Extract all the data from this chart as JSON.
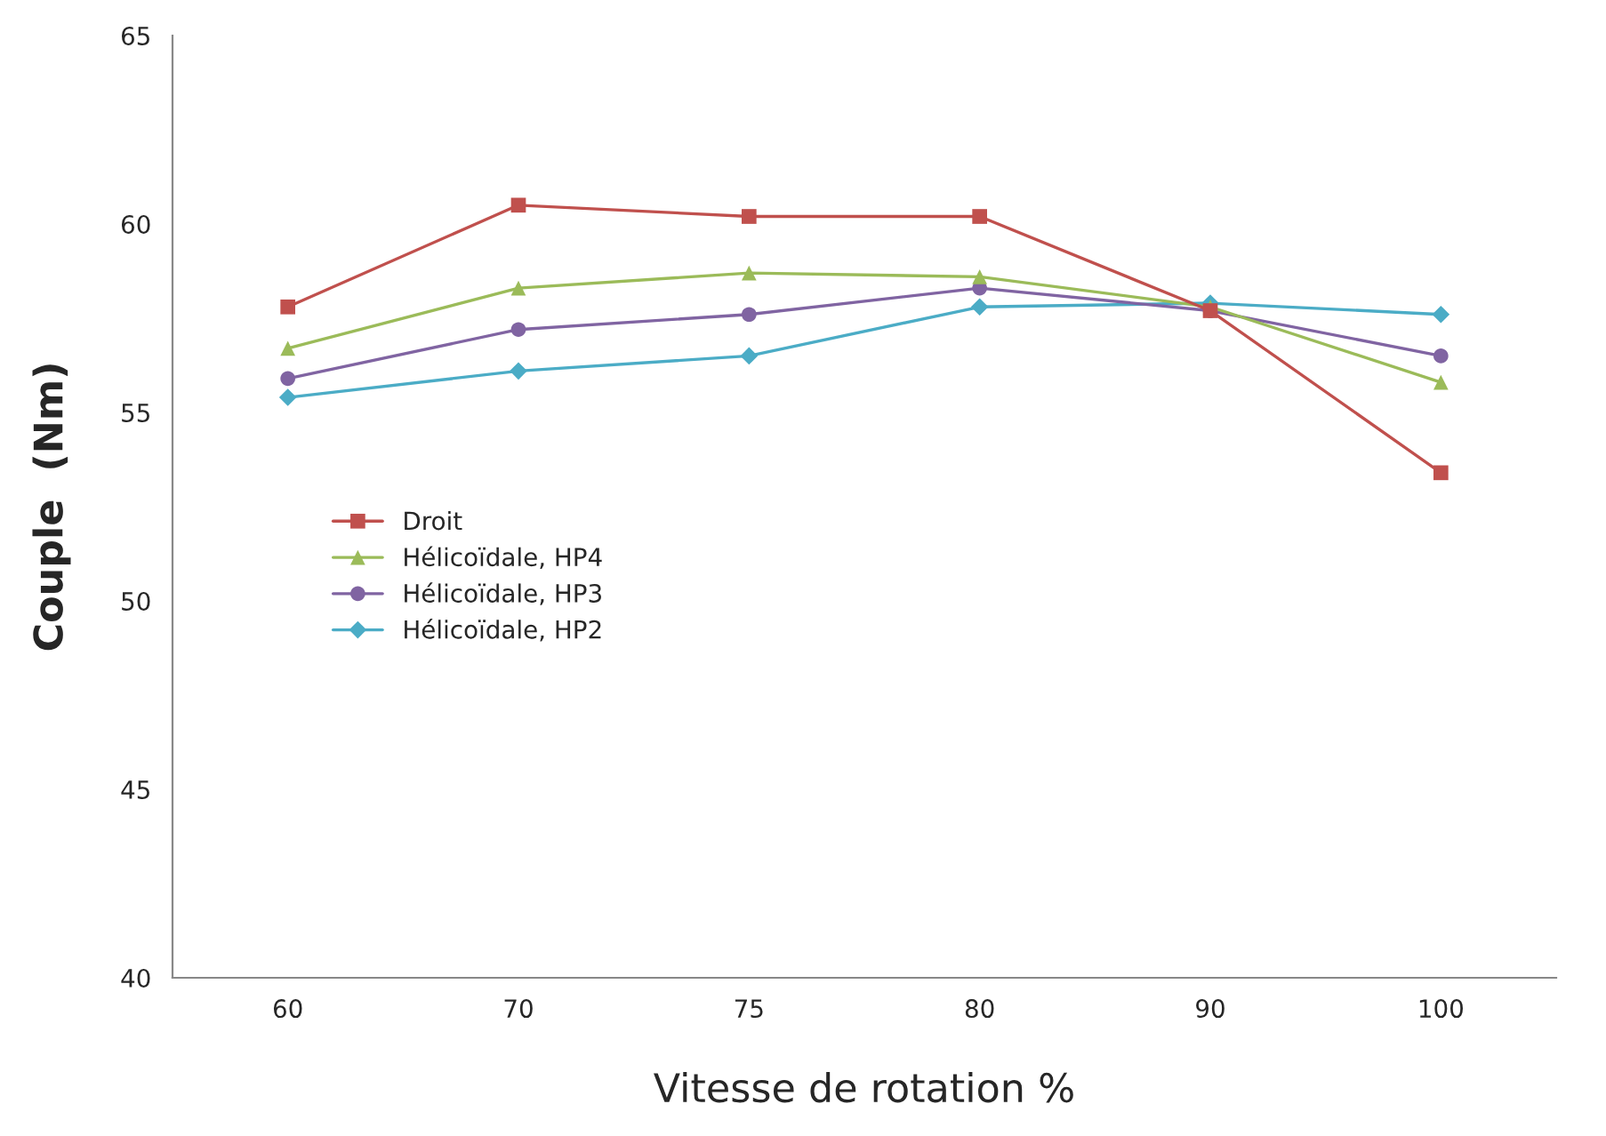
{
  "chart_data": {
    "type": "line",
    "xlabel": "Vitesse de rotation %",
    "ylabel": "Couple  (Nm)",
    "categories": [
      "60",
      "70",
      "75",
      "80",
      "90",
      "100"
    ],
    "ylim": [
      40,
      65
    ],
    "yticks": [
      40,
      45,
      50,
      55,
      60,
      65
    ],
    "grid": false,
    "legend": "center left",
    "line_style": "solid",
    "series": [
      {
        "name": "Droit",
        "color": "#c0504d",
        "marker": "square",
        "values": [
          57.8,
          60.5,
          60.2,
          60.2,
          57.7,
          53.4
        ]
      },
      {
        "name": "Hélicoïdale, HP4",
        "color": "#9bbb59",
        "marker": "triangle",
        "values": [
          56.7,
          58.3,
          58.7,
          58.6,
          57.8,
          55.8
        ]
      },
      {
        "name": "Hélicoïdale, HP3",
        "color": "#8064a2",
        "marker": "circle",
        "values": [
          55.9,
          57.2,
          57.6,
          58.3,
          57.7,
          56.5
        ]
      },
      {
        "name": "Hélicoïdale, HP2",
        "color": "#4bacc6",
        "marker": "diamond",
        "values": [
          55.4,
          56.1,
          56.5,
          57.8,
          57.9,
          57.6
        ]
      }
    ]
  }
}
